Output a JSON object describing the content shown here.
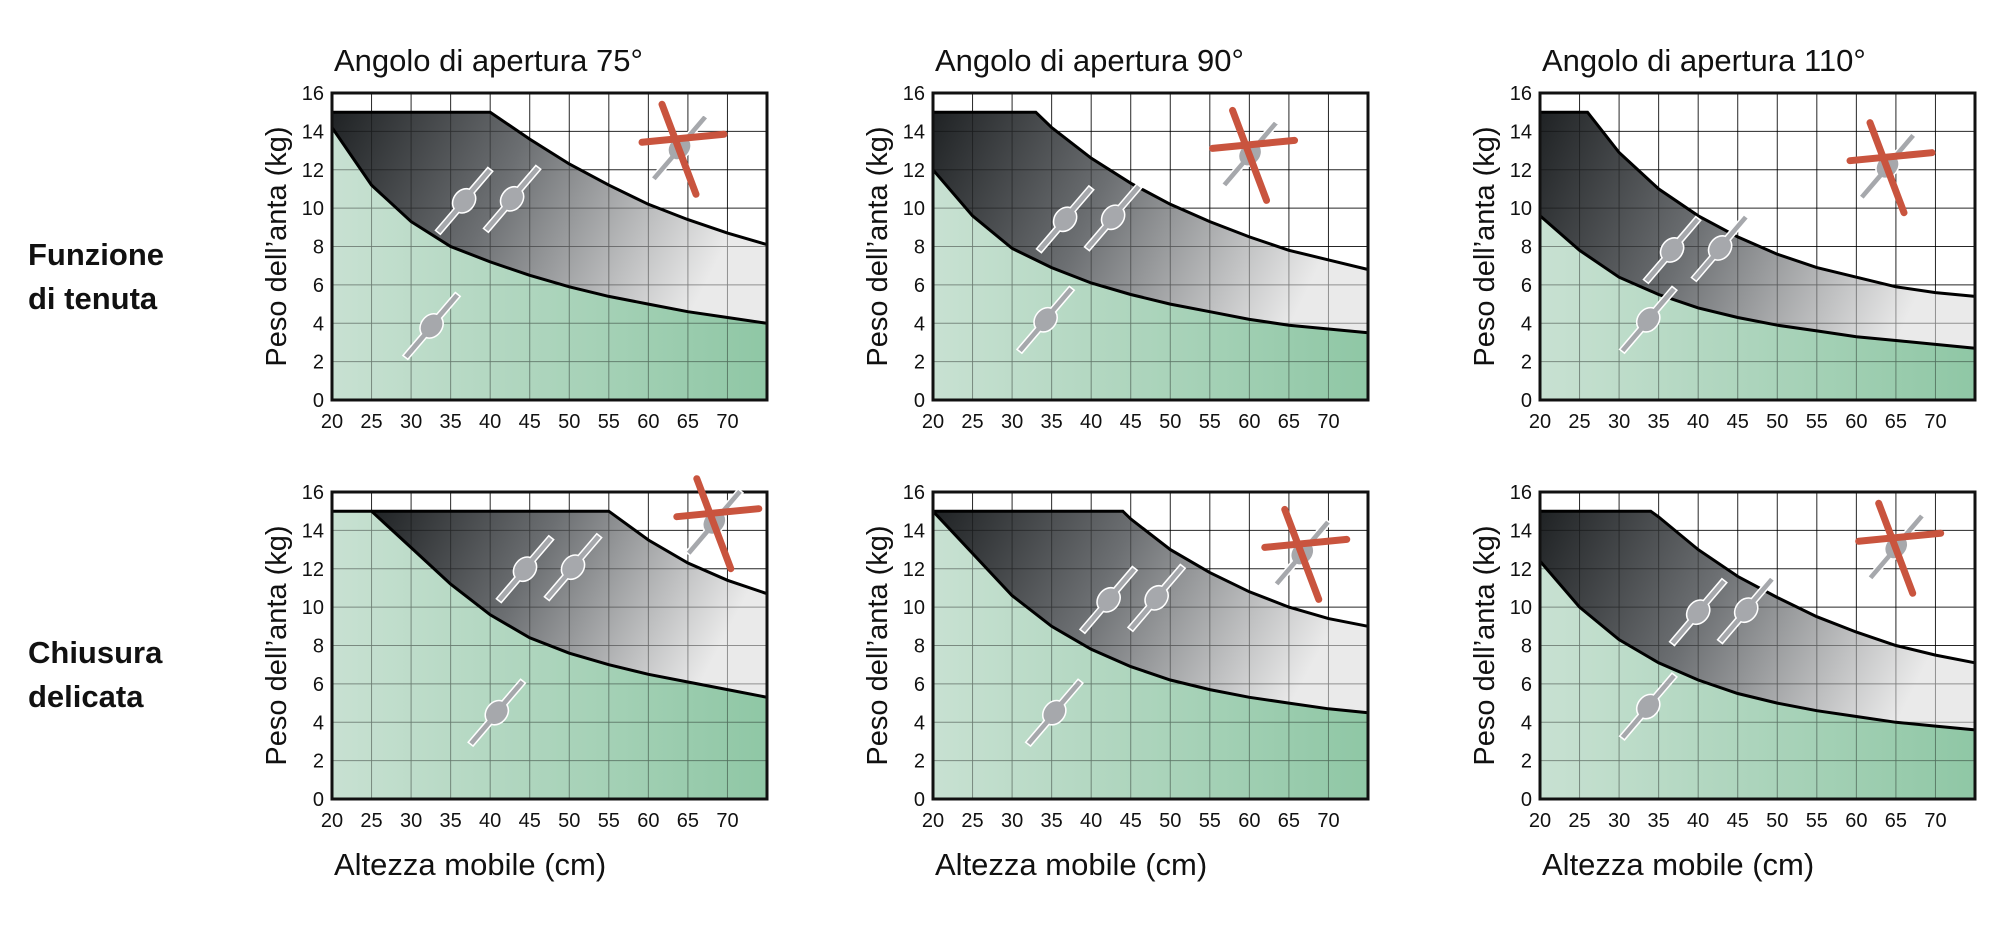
{
  "row_labels": [
    {
      "line1": "Funzione",
      "line2": "di tenuta"
    },
    {
      "line1": "Chiusura",
      "line2": "delicata"
    }
  ],
  "colors": {
    "safe_zone": "#8fc7a5",
    "safe_zone_light": "#c8e1d2",
    "operating_zone_dark": "#1f2224",
    "operating_zone_light": "#eaeaea",
    "grid": "#ffffff",
    "frame": "#111111",
    "symbol_fill": "#a6a8ac",
    "symbol_cross": "#c9543e"
  },
  "chart_data": [
    {
      "type": "area",
      "row": "Funzione di tenuta",
      "title": "Angolo di apertura 75°",
      "ylabel": "Peso dell’anta (kg)",
      "xlabel": "",
      "xlim": [
        20,
        75
      ],
      "ylim": [
        0,
        16
      ],
      "xticks": [
        20,
        25,
        30,
        35,
        40,
        45,
        50,
        55,
        60,
        65,
        70
      ],
      "yticks": [
        0,
        2,
        4,
        6,
        8,
        10,
        12,
        14,
        16
      ],
      "series": [
        {
          "name": "lower-limit",
          "x": [
            20,
            25,
            30,
            35,
            40,
            45,
            50,
            55,
            60,
            65,
            70,
            75
          ],
          "y": [
            14.2,
            11.2,
            9.3,
            8.0,
            7.2,
            6.5,
            5.9,
            5.4,
            5.0,
            4.6,
            4.3,
            4.0
          ]
        },
        {
          "name": "upper-limit",
          "x": [
            20,
            40,
            45,
            50,
            55,
            60,
            65,
            70,
            75
          ],
          "y": [
            15,
            15,
            13.6,
            12.3,
            11.2,
            10.2,
            9.4,
            8.7,
            8.1
          ]
        }
      ]
    },
    {
      "type": "area",
      "row": "Funzione di tenuta",
      "title": "Angolo di apertura 90°",
      "ylabel": "Peso dell’anta (kg)",
      "xlabel": "",
      "xlim": [
        20,
        75
      ],
      "ylim": [
        0,
        16
      ],
      "xticks": [
        20,
        25,
        30,
        35,
        40,
        45,
        50,
        55,
        60,
        65,
        70
      ],
      "yticks": [
        0,
        2,
        4,
        6,
        8,
        10,
        12,
        14,
        16
      ],
      "series": [
        {
          "name": "lower-limit",
          "x": [
            20,
            25,
            30,
            35,
            40,
            45,
            50,
            55,
            60,
            65,
            70,
            75
          ],
          "y": [
            12.0,
            9.6,
            7.9,
            6.9,
            6.1,
            5.5,
            5.0,
            4.6,
            4.2,
            3.9,
            3.7,
            3.5
          ]
        },
        {
          "name": "upper-limit",
          "x": [
            20,
            33,
            35,
            40,
            45,
            50,
            55,
            60,
            65,
            70,
            75
          ],
          "y": [
            15,
            15,
            14.2,
            12.6,
            11.3,
            10.2,
            9.3,
            8.5,
            7.8,
            7.3,
            6.8
          ]
        }
      ]
    },
    {
      "type": "area",
      "row": "Funzione di tenuta",
      "title": "Angolo di apertura 110°",
      "ylabel": "Peso dell’anta (kg)",
      "xlabel": "",
      "xlim": [
        20,
        75
      ],
      "ylim": [
        0,
        16
      ],
      "xticks": [
        20,
        25,
        30,
        35,
        40,
        45,
        50,
        55,
        60,
        65,
        70
      ],
      "yticks": [
        0,
        2,
        4,
        6,
        8,
        10,
        12,
        14,
        16
      ],
      "series": [
        {
          "name": "lower-limit",
          "x": [
            20,
            25,
            30,
            35,
            40,
            45,
            50,
            55,
            60,
            65,
            70,
            75
          ],
          "y": [
            9.6,
            7.8,
            6.4,
            5.5,
            4.8,
            4.3,
            3.9,
            3.6,
            3.3,
            3.1,
            2.9,
            2.7
          ]
        },
        {
          "name": "upper-limit",
          "x": [
            20,
            26,
            30,
            35,
            40,
            45,
            50,
            55,
            60,
            65,
            70,
            75
          ],
          "y": [
            15,
            15,
            12.9,
            11.0,
            9.6,
            8.5,
            7.6,
            6.9,
            6.4,
            5.9,
            5.6,
            5.4
          ]
        }
      ]
    },
    {
      "type": "area",
      "row": "Chiusura delicata",
      "title": "",
      "ylabel": "Peso dell’anta (kg)",
      "xlabel": "Altezza mobile (cm)",
      "xlim": [
        20,
        75
      ],
      "ylim": [
        0,
        16
      ],
      "xticks": [
        20,
        25,
        30,
        35,
        40,
        45,
        50,
        55,
        60,
        65,
        70
      ],
      "yticks": [
        0,
        2,
        4,
        6,
        8,
        10,
        12,
        14,
        16
      ],
      "series": [
        {
          "name": "lower-limit",
          "x": [
            20,
            25,
            30,
            35,
            40,
            45,
            50,
            55,
            60,
            65,
            70,
            75
          ],
          "y": [
            15,
            15,
            13.1,
            11.2,
            9.6,
            8.4,
            7.6,
            7.0,
            6.5,
            6.1,
            5.7,
            5.3
          ]
        },
        {
          "name": "upper-limit",
          "x": [
            25,
            55,
            60,
            65,
            70,
            75
          ],
          "y": [
            15,
            15,
            13.5,
            12.3,
            11.4,
            10.7
          ]
        }
      ]
    },
    {
      "type": "area",
      "row": "Chiusura delicata",
      "title": "",
      "ylabel": "Peso dell’anta (kg)",
      "xlabel": "Altezza mobile (cm)",
      "xlim": [
        20,
        75
      ],
      "ylim": [
        0,
        16
      ],
      "xticks": [
        20,
        25,
        30,
        35,
        40,
        45,
        50,
        55,
        60,
        65,
        70
      ],
      "yticks": [
        0,
        2,
        4,
        6,
        8,
        10,
        12,
        14,
        16
      ],
      "series": [
        {
          "name": "lower-limit",
          "x": [
            20,
            25,
            30,
            35,
            40,
            45,
            50,
            55,
            60,
            65,
            70,
            75
          ],
          "y": [
            15,
            12.8,
            10.6,
            9.0,
            7.8,
            6.9,
            6.2,
            5.7,
            5.3,
            5.0,
            4.7,
            4.5
          ]
        },
        {
          "name": "upper-limit",
          "x": [
            20,
            44,
            45,
            50,
            55,
            60,
            65,
            70,
            75
          ],
          "y": [
            15,
            15,
            14.6,
            13.0,
            11.8,
            10.8,
            10.0,
            9.4,
            9.0
          ]
        }
      ]
    },
    {
      "type": "area",
      "row": "Chiusura delicata",
      "title": "",
      "ylabel": "Peso dell’anta (kg)",
      "xlabel": "Altezza mobile (cm)",
      "xlim": [
        20,
        75
      ],
      "ylim": [
        0,
        16
      ],
      "xticks": [
        20,
        25,
        30,
        35,
        40,
        45,
        50,
        55,
        60,
        65,
        70
      ],
      "yticks": [
        0,
        2,
        4,
        6,
        8,
        10,
        12,
        14,
        16
      ],
      "series": [
        {
          "name": "lower-limit",
          "x": [
            20,
            25,
            30,
            35,
            40,
            45,
            50,
            55,
            60,
            65,
            70,
            75
          ],
          "y": [
            12.4,
            10.0,
            8.3,
            7.1,
            6.2,
            5.5,
            5.0,
            4.6,
            4.3,
            4.0,
            3.8,
            3.6
          ]
        },
        {
          "name": "upper-limit",
          "x": [
            20,
            34,
            35,
            40,
            45,
            50,
            55,
            60,
            65,
            70,
            75
          ],
          "y": [
            15,
            15,
            14.7,
            13.0,
            11.6,
            10.5,
            9.5,
            8.7,
            8.0,
            7.5,
            7.1
          ]
        }
      ]
    }
  ]
}
